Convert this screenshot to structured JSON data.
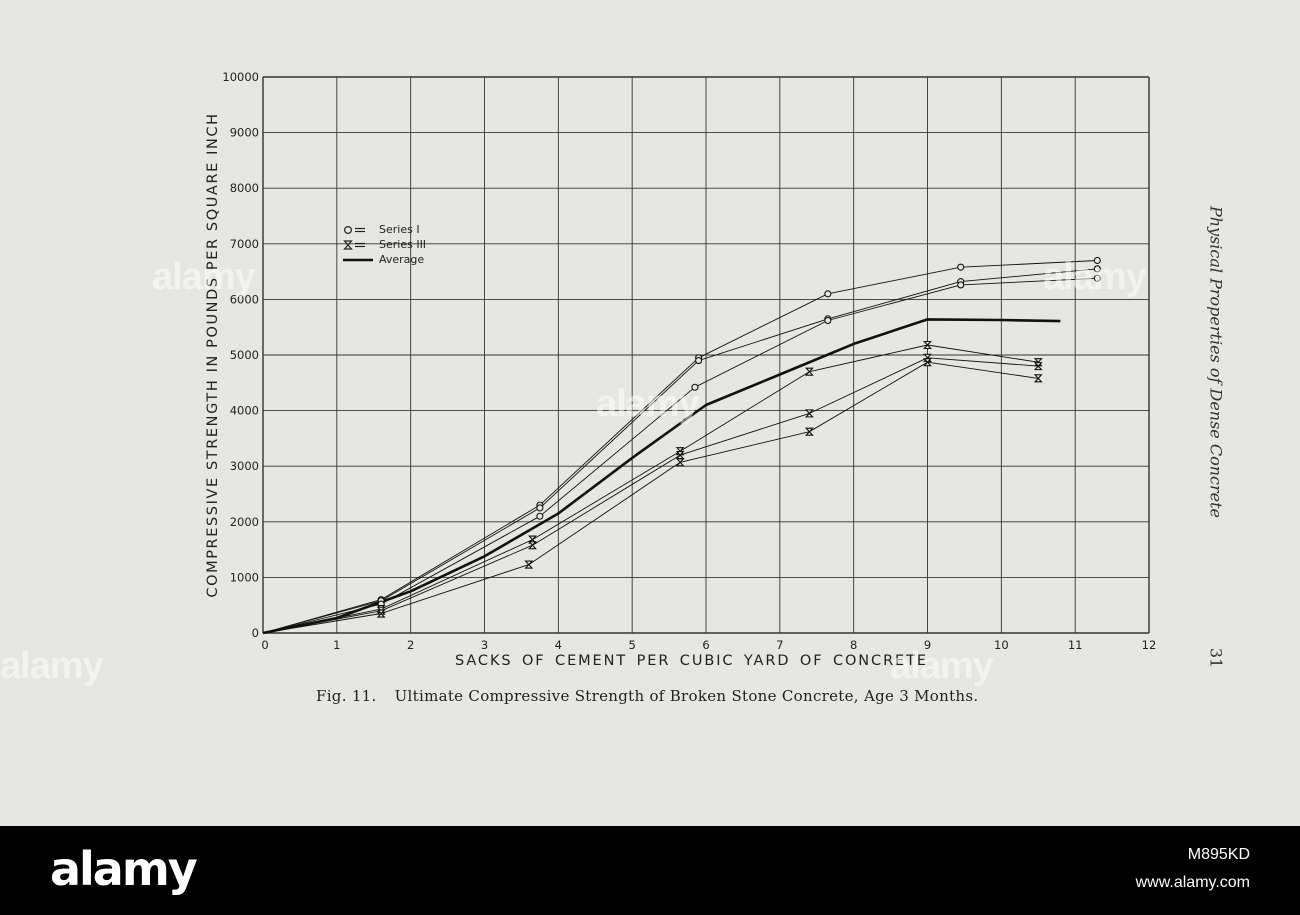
{
  "chart_data": {
    "type": "line",
    "ylabel": "COMPRESSIVE STRENGTH IN POUNDS PER SQUARE INCH",
    "xlabel": "SACKS OF CEMENT PER CUBIC YARD OF CONCRETE",
    "xlim": [
      0,
      12
    ],
    "ylim": [
      0,
      10000
    ],
    "xticks": [
      "0",
      "1",
      "2",
      "3",
      "4",
      "5",
      "6",
      "7",
      "8",
      "9",
      "10",
      "11",
      "12"
    ],
    "yticks": [
      "0",
      "1000",
      "2000",
      "3000",
      "4000",
      "5000",
      "6000",
      "7000",
      "8000",
      "9000",
      "10000"
    ],
    "grid": true,
    "legend": {
      "entries": [
        {
          "symbol": "circle",
          "label": "Series I"
        },
        {
          "symbol": "hourglass",
          "label": "Series III"
        },
        {
          "symbol": "line",
          "label": "Average"
        }
      ]
    },
    "series": [
      {
        "name": "Series I",
        "marker": "circle",
        "x": [
          0,
          1.6,
          3.75,
          5.9,
          7.65,
          9.45,
          11.3
        ],
        "y": [
          0,
          600,
          2300,
          4950,
          6100,
          6580,
          6700
        ]
      },
      {
        "name": "Series I",
        "marker": "circle",
        "x": [
          0,
          1.6,
          3.75,
          5.9,
          7.65,
          9.45,
          11.3
        ],
        "y": [
          0,
          580,
          2250,
          4900,
          5650,
          6320,
          6550
        ]
      },
      {
        "name": "Series I",
        "marker": "circle",
        "x": [
          0,
          1.6,
          3.75,
          5.85,
          7.65,
          9.45,
          11.3
        ],
        "y": [
          0,
          520,
          2100,
          4420,
          5620,
          6260,
          6380
        ]
      },
      {
        "name": "Series III",
        "marker": "hourglass",
        "x": [
          0,
          1.6,
          3.65,
          5.65,
          7.4,
          9.0,
          10.5
        ],
        "y": [
          0,
          430,
          1680,
          3270,
          4700,
          5180,
          4870
        ]
      },
      {
        "name": "Series III",
        "marker": "hourglass",
        "x": [
          0,
          1.6,
          3.65,
          5.65,
          7.4,
          9.0,
          10.5
        ],
        "y": [
          0,
          400,
          1580,
          3200,
          3950,
          4950,
          4800
        ]
      },
      {
        "name": "Series III",
        "marker": "hourglass",
        "x": [
          0,
          1.6,
          3.6,
          5.65,
          7.4,
          9.0,
          10.5
        ],
        "y": [
          0,
          350,
          1230,
          3070,
          3620,
          4870,
          4580
        ]
      },
      {
        "name": "Average",
        "marker": "none",
        "x": [
          0,
          1,
          2,
          3,
          4,
          5,
          6,
          7,
          8,
          9,
          10,
          10.8
        ],
        "y": [
          0,
          270,
          750,
          1380,
          2150,
          3150,
          4100,
          4650,
          5200,
          5640,
          5630,
          5610
        ]
      }
    ]
  },
  "caption": {
    "number": "Fig. 11.",
    "text": "Ultimate Compressive Strength of Broken Stone Concrete, Age 3 Months."
  },
  "running_head": "Physical Properties of Dense Concrete",
  "page_number": "31",
  "watermark": {
    "brand": "alamy",
    "image_id": "M895KD",
    "url": "www.alamy.com"
  }
}
